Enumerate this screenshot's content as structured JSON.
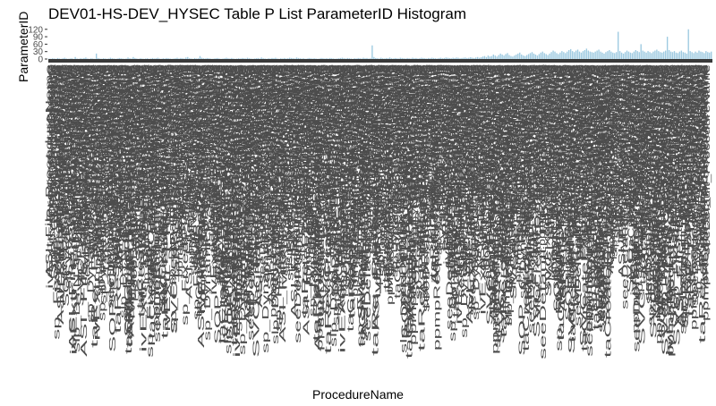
{
  "chart_data": {
    "type": "bar",
    "title": "DEV01-HS-DEV_HYSEC Table P List ParameterID Histogram",
    "xlabel": "ProcedureName",
    "ylabel": "ParameterID",
    "yticks": [
      "120",
      "90",
      "60",
      "30",
      "0"
    ],
    "ylim": [
      0,
      130
    ],
    "bar_color": "#9ecae1",
    "label_color": "#4d4d4d",
    "visible_category_labels": [
      "ASI_File",
      "ivExtr",
      "ppmpRequest",
      "seeDefault",
      "slp_DYN_FUN",
      "SOP_CL",
      "sp_DynamicP",
      "sp_FixedP",
      "SVC_",
      "taCreateF",
      "taRe"
    ],
    "values": [
      2,
      1,
      3,
      2,
      1,
      4,
      2,
      1,
      3,
      5,
      2,
      1,
      2,
      3,
      1,
      8,
      2,
      1,
      3,
      2,
      4,
      6,
      2,
      1,
      3,
      2,
      1,
      22,
      4,
      2,
      1,
      3,
      2,
      1,
      2,
      5,
      3,
      2,
      1,
      2,
      4,
      3,
      2,
      1,
      2,
      6,
      3,
      2,
      8,
      4,
      2,
      1,
      3,
      2,
      1,
      2,
      3,
      1,
      2,
      4,
      2,
      3,
      5,
      2,
      1,
      3,
      2,
      4,
      3,
      2,
      1,
      2,
      3,
      5,
      2,
      4,
      3,
      2,
      6,
      8,
      3,
      2,
      1,
      4,
      2,
      3,
      12,
      5,
      3,
      2,
      4,
      3,
      2,
      1,
      2,
      3,
      4,
      2,
      1,
      2,
      3,
      5,
      3,
      2,
      4,
      2,
      1,
      2,
      3,
      2,
      4,
      3,
      2,
      5,
      3,
      2,
      1,
      2,
      3,
      4,
      2,
      6,
      3,
      2,
      1,
      3,
      2,
      4,
      3,
      5,
      2,
      1,
      3,
      2,
      4,
      2,
      3,
      5,
      4,
      3,
      2,
      6,
      4,
      3,
      2,
      3,
      1,
      2,
      4,
      3,
      2,
      3,
      2,
      1,
      2,
      4,
      3,
      2,
      3,
      2,
      4,
      3,
      2,
      1,
      2,
      3,
      4,
      5,
      3,
      2,
      4,
      3,
      2,
      1,
      3,
      2,
      4,
      3,
      2,
      5,
      3,
      4,
      2,
      3,
      55,
      8,
      4,
      3,
      2,
      5,
      3,
      2,
      4,
      3,
      6,
      3,
      2,
      4,
      3,
      2,
      5,
      4,
      3,
      2,
      4,
      3,
      2,
      5,
      3,
      4,
      2,
      3,
      5,
      4,
      3,
      2,
      4,
      3,
      5,
      4,
      3,
      2,
      4,
      5,
      3,
      4,
      6,
      5,
      4,
      3,
      5,
      4,
      6,
      5,
      3,
      4,
      5,
      6,
      4,
      5,
      7,
      5,
      4,
      6,
      8,
      5,
      7,
      10,
      12,
      8,
      14,
      10,
      12,
      18,
      14,
      10,
      16,
      22,
      18,
      14,
      20,
      24,
      16,
      12,
      10,
      14,
      18,
      22,
      26,
      18,
      14,
      12,
      16,
      20,
      24,
      28,
      22,
      18,
      14,
      20,
      26,
      30,
      24,
      20,
      16,
      22,
      28,
      34,
      30,
      24,
      20,
      26,
      32,
      28,
      24,
      30,
      36,
      40,
      32,
      28,
      34,
      38,
      30,
      26,
      32,
      36,
      42,
      34,
      30,
      28,
      26,
      30,
      34,
      38,
      30,
      26,
      22,
      28,
      32,
      36,
      30,
      26,
      24,
      28,
      110,
      32,
      26,
      22,
      28,
      34,
      30,
      26,
      24,
      30,
      36,
      32,
      28,
      60,
      34,
      30,
      26,
      32,
      28,
      24,
      30,
      34,
      38,
      32,
      28,
      26,
      30,
      34,
      90,
      36,
      30,
      28,
      32,
      26,
      24,
      30,
      34,
      28,
      26,
      22,
      120,
      32,
      28,
      24,
      30,
      26,
      34,
      30,
      28,
      24,
      32,
      28,
      26,
      30
    ]
  }
}
